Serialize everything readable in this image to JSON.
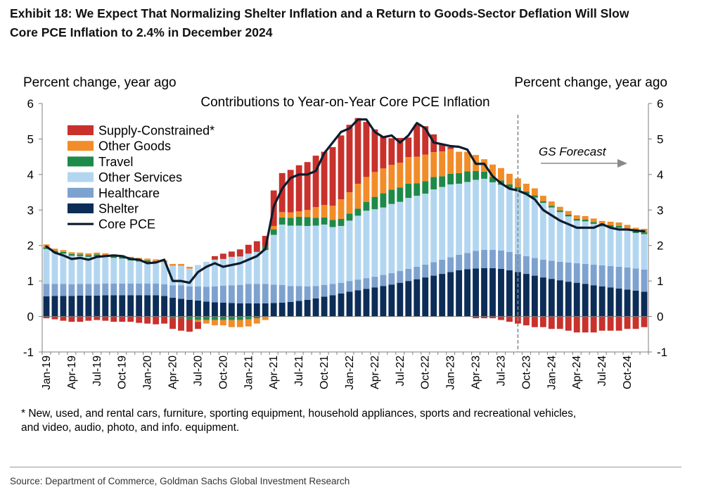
{
  "exhibit": {
    "title_line1": "Exhibit 18: We Expect That Normalizing Shelter Inflation and a Return to Goods-Sector Deflation Will Slow",
    "title_line2": "Core PCE Inflation to 2.4% in December 2024"
  },
  "footnote": {
    "line1": "* New, used, and rental cars, furniture, sporting equipment, household appliances, sports and recreational vehicles,",
    "line2": "and video, audio, photo, and info. equipment."
  },
  "source": "Source: Department of Commerce, Goldman Sachs Global Investment Research",
  "chart_data": {
    "type": "bar",
    "subtype": "stacked bar with line",
    "title": "Contributions to Year-on-Year Core PCE Inflation",
    "ylabel_left": "Percent change, year ago",
    "ylabel_right": "Percent change, year ago",
    "ylim": [
      -1,
      6
    ],
    "yticks": [
      -1,
      0,
      1,
      2,
      3,
      4,
      5,
      6
    ],
    "x_tick_labels": [
      "Jan-19",
      "Apr-19",
      "Jul-19",
      "Oct-19",
      "Jan-20",
      "Apr-20",
      "Jul-20",
      "Oct-20",
      "Jan-21",
      "Apr-21",
      "Jul-21",
      "Oct-21",
      "Jan-22",
      "Apr-22",
      "Jul-22",
      "Oct-22",
      "Jan-23",
      "Apr-23",
      "Jul-23",
      "Oct-23",
      "Jan-24",
      "Apr-24",
      "Jul-24",
      "Oct-24"
    ],
    "forecast_label": "GS Forecast",
    "forecast_start": "Sep-23",
    "grid": false,
    "legend_position": "top-left",
    "colors": {
      "supply": "#c8312c",
      "other_goods": "#f28c28",
      "travel": "#1e8a4a",
      "other_services": "#b3d6f0",
      "healthcare": "#7ea2cf",
      "shelter": "#0c2d57",
      "core_pce": "#0d1c2e",
      "forecast_divider": "#8a8a8a"
    },
    "legend": [
      {
        "key": "supply",
        "label": "Supply-Constrained*",
        "kind": "bar"
      },
      {
        "key": "other_goods",
        "label": "Other Goods",
        "kind": "bar"
      },
      {
        "key": "travel",
        "label": "Travel",
        "kind": "bar"
      },
      {
        "key": "other_services",
        "label": "Other Services",
        "kind": "bar"
      },
      {
        "key": "healthcare",
        "label": "Healthcare",
        "kind": "bar"
      },
      {
        "key": "shelter",
        "label": "Shelter",
        "kind": "bar"
      },
      {
        "key": "core_pce",
        "label": "Core PCE",
        "kind": "line"
      }
    ],
    "x": [
      "Jan-19",
      "Feb-19",
      "Mar-19",
      "Apr-19",
      "May-19",
      "Jun-19",
      "Jul-19",
      "Aug-19",
      "Sep-19",
      "Oct-19",
      "Nov-19",
      "Dec-19",
      "Jan-20",
      "Feb-20",
      "Mar-20",
      "Apr-20",
      "May-20",
      "Jun-20",
      "Jul-20",
      "Aug-20",
      "Sep-20",
      "Oct-20",
      "Nov-20",
      "Dec-20",
      "Jan-21",
      "Feb-21",
      "Mar-21",
      "Apr-21",
      "May-21",
      "Jun-21",
      "Jul-21",
      "Aug-21",
      "Sep-21",
      "Oct-21",
      "Nov-21",
      "Dec-21",
      "Jan-22",
      "Feb-22",
      "Mar-22",
      "Apr-22",
      "May-22",
      "Jun-22",
      "Jul-22",
      "Aug-22",
      "Sep-22",
      "Oct-22",
      "Nov-22",
      "Dec-22",
      "Jan-23",
      "Feb-23",
      "Mar-23",
      "Apr-23",
      "May-23",
      "Jun-23",
      "Jul-23",
      "Aug-23",
      "Sep-23",
      "Oct-23",
      "Nov-23",
      "Dec-23",
      "Jan-24",
      "Feb-24",
      "Mar-24",
      "Apr-24",
      "May-24",
      "Jun-24",
      "Jul-24",
      "Aug-24",
      "Sep-24",
      "Oct-24",
      "Nov-24",
      "Dec-24"
    ],
    "series": [
      {
        "key": "shelter",
        "name": "Shelter",
        "values": [
          0.57,
          0.58,
          0.58,
          0.58,
          0.59,
          0.59,
          0.59,
          0.6,
          0.6,
          0.6,
          0.6,
          0.6,
          0.6,
          0.6,
          0.58,
          0.53,
          0.5,
          0.47,
          0.45,
          0.42,
          0.4,
          0.39,
          0.38,
          0.37,
          0.37,
          0.37,
          0.37,
          0.38,
          0.39,
          0.41,
          0.44,
          0.47,
          0.51,
          0.56,
          0.6,
          0.65,
          0.7,
          0.74,
          0.78,
          0.82,
          0.86,
          0.9,
          0.95,
          1.0,
          1.05,
          1.1,
          1.15,
          1.2,
          1.25,
          1.3,
          1.33,
          1.35,
          1.36,
          1.36,
          1.34,
          1.3,
          1.25,
          1.2,
          1.15,
          1.1,
          1.06,
          1.02,
          0.98,
          0.95,
          0.92,
          0.88,
          0.85,
          0.82,
          0.79,
          0.76,
          0.73,
          0.7
        ]
      },
      {
        "key": "healthcare",
        "name": "Healthcare",
        "values": [
          0.35,
          0.34,
          0.34,
          0.33,
          0.33,
          0.33,
          0.33,
          0.33,
          0.33,
          0.33,
          0.33,
          0.33,
          0.33,
          0.33,
          0.33,
          0.35,
          0.38,
          0.38,
          0.4,
          0.42,
          0.45,
          0.48,
          0.5,
          0.52,
          0.55,
          0.55,
          0.55,
          0.52,
          0.5,
          0.45,
          0.42,
          0.38,
          0.35,
          0.33,
          0.32,
          0.3,
          0.3,
          0.3,
          0.3,
          0.3,
          0.31,
          0.32,
          0.33,
          0.34,
          0.35,
          0.36,
          0.38,
          0.4,
          0.42,
          0.44,
          0.46,
          0.5,
          0.52,
          0.52,
          0.52,
          0.52,
          0.51,
          0.5,
          0.5,
          0.5,
          0.51,
          0.52,
          0.54,
          0.55,
          0.56,
          0.58,
          0.59,
          0.6,
          0.61,
          0.62,
          0.62,
          0.62
        ]
      },
      {
        "key": "other_services",
        "name": "Other Services",
        "values": [
          0.98,
          0.88,
          0.85,
          0.8,
          0.78,
          0.76,
          0.78,
          0.75,
          0.72,
          0.7,
          0.65,
          0.62,
          0.6,
          0.6,
          0.62,
          0.55,
          0.55,
          0.5,
          0.6,
          0.7,
          0.75,
          0.75,
          0.8,
          0.8,
          0.85,
          0.9,
          0.95,
          1.4,
          1.7,
          1.7,
          1.7,
          1.7,
          1.7,
          1.7,
          1.6,
          1.6,
          1.7,
          1.8,
          1.9,
          1.9,
          1.9,
          1.95,
          1.95,
          2.0,
          2.0,
          2.0,
          2.05,
          2.05,
          2.05,
          2.0,
          2.0,
          2.0,
          2.0,
          1.9,
          1.85,
          1.8,
          1.8,
          1.75,
          1.7,
          1.6,
          1.5,
          1.4,
          1.3,
          1.2,
          1.2,
          1.15,
          1.1,
          1.1,
          1.1,
          1.05,
          1.0,
          1.0
        ]
      },
      {
        "key": "travel",
        "name": "Travel",
        "values": [
          0.05,
          0.05,
          0.05,
          0.05,
          0.05,
          0.05,
          0.05,
          0.05,
          0.05,
          0.05,
          0.05,
          0.05,
          0.05,
          0.03,
          0.0,
          -0.05,
          -0.05,
          -0.08,
          -0.1,
          -0.1,
          -0.1,
          -0.1,
          -0.1,
          -0.1,
          -0.08,
          -0.05,
          0.1,
          0.15,
          0.2,
          0.22,
          0.25,
          0.25,
          0.22,
          0.2,
          0.2,
          0.2,
          0.2,
          0.2,
          0.25,
          0.35,
          0.4,
          0.4,
          0.4,
          0.4,
          0.35,
          0.35,
          0.35,
          0.3,
          0.3,
          0.3,
          0.3,
          0.25,
          0.2,
          0.15,
          0.12,
          0.1,
          0.08,
          0.07,
          0.06,
          0.05,
          0.05,
          0.05,
          0.05,
          0.05,
          0.05,
          0.05,
          0.05,
          0.05,
          0.05,
          0.05,
          0.05,
          0.05
        ]
      },
      {
        "key": "other_goods",
        "name": "Other Goods",
        "values": [
          0.08,
          0.06,
          0.05,
          0.05,
          0.05,
          0.05,
          0.05,
          0.05,
          0.05,
          0.05,
          0.05,
          0.05,
          0.05,
          0.05,
          0.05,
          0.05,
          0.05,
          0.05,
          -0.05,
          -0.1,
          -0.15,
          -0.15,
          -0.2,
          -0.2,
          -0.2,
          -0.15,
          -0.1,
          0.1,
          0.15,
          0.15,
          0.15,
          0.2,
          0.3,
          0.35,
          0.4,
          0.55,
          0.6,
          0.7,
          0.7,
          0.7,
          0.7,
          0.7,
          0.7,
          0.75,
          0.75,
          0.75,
          0.7,
          0.7,
          0.7,
          0.6,
          0.55,
          0.45,
          0.35,
          0.35,
          0.35,
          0.3,
          0.25,
          0.22,
          0.2,
          0.15,
          0.12,
          0.1,
          0.1,
          0.1,
          0.1,
          0.1,
          0.1,
          0.1,
          0.1,
          0.1,
          0.1,
          0.1
        ]
      },
      {
        "key": "supply",
        "name": "Supply-Constrained*",
        "values": [
          -0.05,
          -0.08,
          -0.12,
          -0.15,
          -0.15,
          -0.12,
          -0.1,
          -0.12,
          -0.15,
          -0.15,
          -0.15,
          -0.18,
          -0.2,
          -0.22,
          -0.2,
          -0.3,
          -0.35,
          -0.35,
          -0.2,
          0.0,
          0.1,
          0.15,
          0.15,
          0.2,
          0.25,
          0.3,
          0.3,
          1.0,
          1.1,
          1.2,
          1.3,
          1.35,
          1.45,
          1.5,
          1.65,
          1.8,
          1.9,
          1.85,
          1.55,
          1.2,
          0.9,
          0.75,
          0.7,
          0.55,
          0.9,
          0.8,
          0.5,
          0.2,
          0.05,
          0.0,
          0.0,
          -0.05,
          -0.05,
          -0.05,
          -0.1,
          -0.15,
          -0.2,
          -0.25,
          -0.3,
          -0.3,
          -0.35,
          -0.35,
          -0.4,
          -0.45,
          -0.45,
          -0.45,
          -0.4,
          -0.4,
          -0.4,
          -0.35,
          -0.35,
          -0.3
        ]
      },
      {
        "key": "core_pce",
        "name": "Core PCE",
        "type": "line",
        "values": [
          1.97,
          1.8,
          1.72,
          1.62,
          1.65,
          1.6,
          1.68,
          1.7,
          1.72,
          1.7,
          1.62,
          1.6,
          1.5,
          1.52,
          1.6,
          1.0,
          1.0,
          0.95,
          1.25,
          1.4,
          1.5,
          1.4,
          1.45,
          1.5,
          1.6,
          1.7,
          1.9,
          3.1,
          3.6,
          3.9,
          4.0,
          4.0,
          4.1,
          4.6,
          4.9,
          5.2,
          5.3,
          5.55,
          5.55,
          5.2,
          5.05,
          5.1,
          4.9,
          5.1,
          5.45,
          5.3,
          4.9,
          4.85,
          4.8,
          4.78,
          4.7,
          4.3,
          4.3,
          3.95,
          3.75,
          3.6,
          3.55,
          3.45,
          3.3,
          3.0,
          2.85,
          2.7,
          2.6,
          2.5,
          2.5,
          2.5,
          2.6,
          2.5,
          2.45,
          2.45,
          2.42,
          2.4
        ]
      }
    ]
  }
}
